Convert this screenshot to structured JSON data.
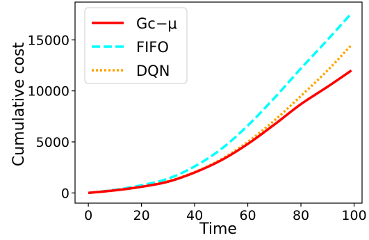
{
  "chart_data": {
    "type": "line",
    "xlabel": "Time",
    "ylabel": "Cumulative cost",
    "xlim": [
      -5,
      103
    ],
    "ylim": [
      -1000,
      18700
    ],
    "xticks": [
      0,
      20,
      40,
      60,
      80,
      100
    ],
    "yticks": [
      0,
      5000,
      10000,
      15000
    ],
    "legend_position": "top-left",
    "grid": false,
    "x": [
      0,
      10,
      20,
      30,
      40,
      50,
      60,
      70,
      80,
      90,
      99
    ],
    "series": [
      {
        "name": "Gc−μ",
        "color": "#ff0000",
        "dash": "solid",
        "values": [
          0,
          250,
          600,
          1100,
          2000,
          3200,
          4800,
          6700,
          8700,
          10400,
          12000
        ]
      },
      {
        "name": "FIFO",
        "color": "#00ffff",
        "dash": "dashed",
        "values": [
          0,
          300,
          750,
          1400,
          2600,
          4300,
          6600,
          9300,
          12200,
          15000,
          17600
        ]
      },
      {
        "name": "DQN",
        "color": "#ffa500",
        "dash": "dotted",
        "values": [
          0,
          250,
          600,
          1150,
          2050,
          3300,
          5000,
          7100,
          9500,
          12000,
          14500
        ]
      }
    ]
  }
}
